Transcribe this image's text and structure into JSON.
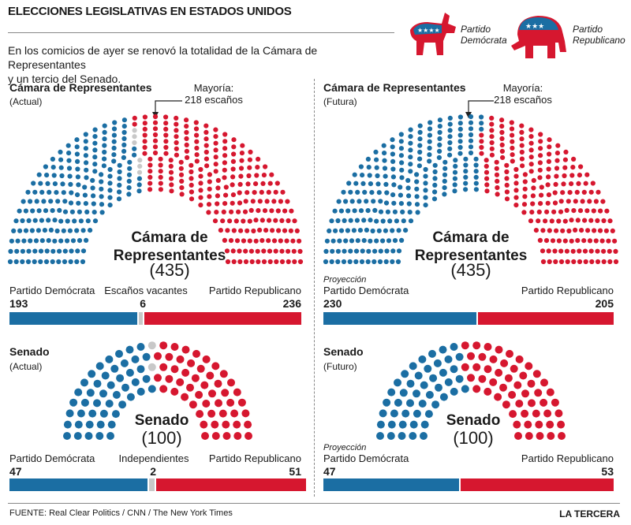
{
  "header": {
    "title": "ELECCIONES LEGISLATIVAS EN ESTADOS UNIDOS",
    "intro_line1": "En los comicios de ayer se renovó la totalidad de la Cámara de Representantes",
    "intro_line2": "y un tercio del Senado."
  },
  "legend": {
    "dem_line1": "Partido",
    "dem_line2": "Demócrata",
    "rep_line1": "Partido",
    "rep_line2": "Republicano"
  },
  "colors": {
    "dem": "#1b6ea3",
    "rep": "#d6172f",
    "vacant": "#c8c8c8"
  },
  "house_current": {
    "title": "Cámara de Representantes",
    "subtitle": "(Actual)",
    "majority_label": "Mayoría:",
    "majority_value": "218 escaños",
    "center_line1": "Cámara de",
    "center_line2": "Representantes",
    "center_total": "(435)",
    "dem_label": "Partido Demócrata",
    "dem_value": "193",
    "mid_label": "Escaños vacantes",
    "mid_value": "6",
    "rep_label": "Partido Republicano",
    "rep_value": "236"
  },
  "house_future": {
    "title": "Cámara de Representantes",
    "subtitle": "(Futura)",
    "majority_label": "Mayoría:",
    "majority_value": "218 escaños",
    "center_line1": "Cámara de",
    "center_line2": "Representantes",
    "center_total": "(435)",
    "projection": "Proyección",
    "dem_label": "Partido Demócrata",
    "dem_value": "230",
    "rep_label": "Partido Republicano",
    "rep_value": "205"
  },
  "senate_current": {
    "title": "Senado",
    "subtitle": "(Actual)",
    "center_line1": "Senado",
    "center_total": "(100)",
    "dem_label": "Partido Demócrata",
    "dem_value": "47",
    "mid_label": "Independientes",
    "mid_value": "2",
    "rep_label": "Partido Republicano",
    "rep_value": "51"
  },
  "senate_future": {
    "title": "Senado",
    "subtitle": "(Futuro)",
    "center_line1": "Senado",
    "center_total": "(100)",
    "projection": "Proyección",
    "dem_label": "Partido Demócrata",
    "dem_value": "47",
    "rep_label": "Partido Republicano",
    "rep_value": "53"
  },
  "footer": {
    "source": "FUENTE: Real Clear Politics / CNN / The New York Times",
    "brand": "LA TERCERA"
  },
  "chart_data": [
    {
      "type": "parliament",
      "title": "Cámara de Representantes (Actual)",
      "total": 435,
      "series": [
        {
          "name": "Partido Demócrata",
          "value": 193
        },
        {
          "name": "Escaños vacantes",
          "value": 6
        },
        {
          "name": "Partido Republicano",
          "value": 236
        }
      ]
    },
    {
      "type": "parliament",
      "title": "Cámara de Representantes (Futura)",
      "total": 435,
      "series": [
        {
          "name": "Partido Demócrata",
          "value": 230
        },
        {
          "name": "Partido Republicano",
          "value": 205
        }
      ]
    },
    {
      "type": "parliament",
      "title": "Senado (Actual)",
      "total": 100,
      "series": [
        {
          "name": "Partido Demócrata",
          "value": 47
        },
        {
          "name": "Independientes",
          "value": 2
        },
        {
          "name": "Partido Republicano",
          "value": 51
        }
      ]
    },
    {
      "type": "parliament",
      "title": "Senado (Futuro)",
      "total": 100,
      "series": [
        {
          "name": "Partido Demócrata",
          "value": 47
        },
        {
          "name": "Partido Republicano",
          "value": 53
        }
      ]
    }
  ]
}
